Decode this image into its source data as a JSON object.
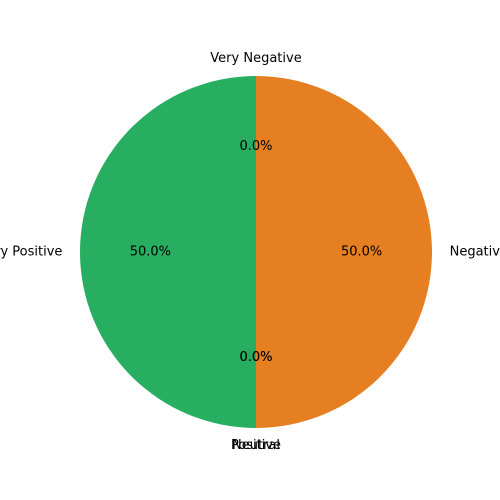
{
  "chart_data": {
    "type": "pie",
    "title": "",
    "categories": [
      "Very Negative",
      "Negative",
      "Neutral",
      "Positive",
      "Very Positive"
    ],
    "values": [
      0,
      50,
      0,
      0,
      50
    ],
    "labels_pct": [
      "0.0%",
      "50.0%",
      "0.0%",
      "0.0%",
      "50.0%"
    ],
    "colors": [
      "#c0392b",
      "#e67e22",
      "#95a5a6",
      "#2ecc71",
      "#27ae60"
    ],
    "start_angle_deg": 90,
    "direction": "clockwise",
    "legend": "none"
  }
}
